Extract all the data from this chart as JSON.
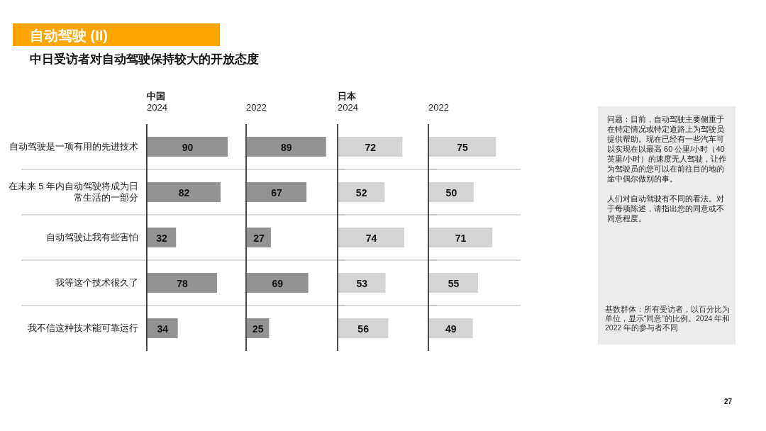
{
  "chart_data": [
    {
      "type": "other",
      "title": "自动驾驶 (II)",
      "subtitle": "中日受访者对自动驾驶保持较大的开放态度",
      "annotations": [
        "问题：目前，自动驾驶主要侧重于在特定情况或特定道路上为驾驶员提供帮助。现在已经有一些汽车可以实现在以最高 60 公里/小时（40 英里/小时）的速度无人驾驶，让作为驾驶员的您可以在前往目的地的途中偶尔做别的事。",
        "人们对自动驾驶有不同的看法。对于每项陈述，请指出您的同意或不同意程度。",
        "基数群体：所有受访者，以百分比为单位，显示“同意”的比例。2024 年和 2022 年的参与者不同",
        "27"
      ]
    },
    {
      "type": "bar",
      "orientation": "horizontal",
      "subtitle": "中国",
      "title": "2024",
      "categories": [
        "自动驾驶是一项有用的先进技术",
        "在未来 5 年内自动驾驶将成为日常生活的一部分",
        "自动驾驶让我有些害怕",
        "我等这个技术很久了",
        "我不信这种技术能可靠运行"
      ],
      "values": [
        90,
        82,
        32,
        78,
        34
      ],
      "color": "#939393",
      "data_labels": true,
      "grid": "y",
      "tick_labels": "y"
    },
    {
      "type": "bar",
      "orientation": "horizontal",
      "title": "2022",
      "categories": [
        null,
        null,
        null,
        null,
        null
      ],
      "values": [
        89,
        67,
        27,
        69,
        25
      ],
      "color": "#939393",
      "data_labels": true,
      "grid": "y",
      "tick_labels": false
    },
    {
      "type": "bar",
      "orientation": "horizontal",
      "subtitle": "日本",
      "title": "2024",
      "categories": [
        null,
        null,
        null,
        null,
        null
      ],
      "values": [
        72,
        52,
        74,
        53,
        56
      ],
      "color": "#d4d4d4",
      "data_labels": true,
      "grid": "y",
      "tick_labels": false
    },
    {
      "type": "bar",
      "orientation": "horizontal",
      "title": "2022",
      "categories": [
        null,
        null,
        null,
        null,
        null
      ],
      "values": [
        75,
        50,
        71,
        55,
        49
      ],
      "color": "#d4d4d4",
      "data_labels": true,
      "grid": "y",
      "tick_labels": false
    }
  ]
}
